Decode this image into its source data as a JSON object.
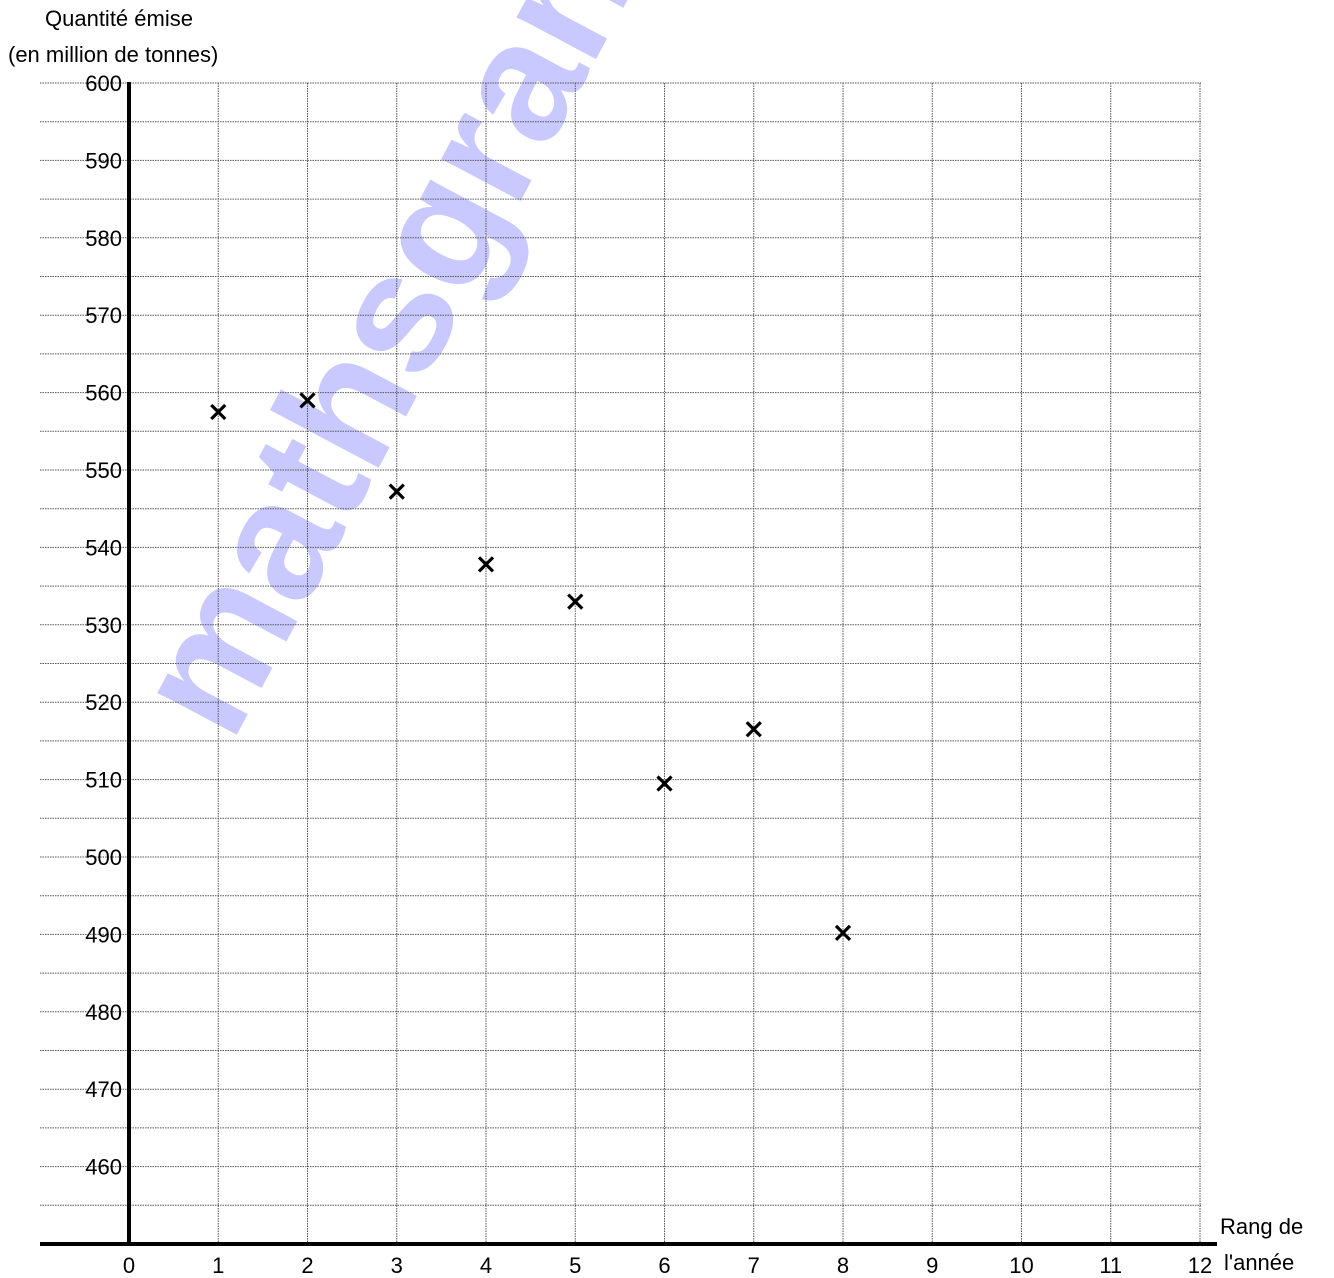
{
  "chart_data": {
    "type": "scatter",
    "ylabel_lines": [
      "Quantité émise",
      "(en million de tonnes)"
    ],
    "xlabel_lines": [
      "Rang de",
      "l'année"
    ],
    "xlim": [
      0,
      12
    ],
    "ylim": [
      450,
      600
    ],
    "x_ticks": [
      0,
      1,
      2,
      3,
      4,
      5,
      6,
      7,
      8,
      9,
      10,
      11,
      12
    ],
    "y_ticks": [
      460,
      470,
      480,
      490,
      500,
      510,
      520,
      530,
      540,
      550,
      560,
      570,
      580,
      590,
      600
    ],
    "grid": true,
    "marker": "cross",
    "points": [
      {
        "x": 1,
        "y": 557.5
      },
      {
        "x": 2,
        "y": 559
      },
      {
        "x": 3,
        "y": 547.2
      },
      {
        "x": 4,
        "y": 537.8
      },
      {
        "x": 5,
        "y": 533
      },
      {
        "x": 6,
        "y": 509.5
      },
      {
        "x": 7,
        "y": 516.5
      },
      {
        "x": 8,
        "y": 490.2
      }
    ]
  },
  "watermark": "mathsgrandprof.net",
  "colors": {
    "axis": "#000000",
    "grid": "#555555",
    "marker": "#000000",
    "watermark": "#c9c9ff"
  }
}
